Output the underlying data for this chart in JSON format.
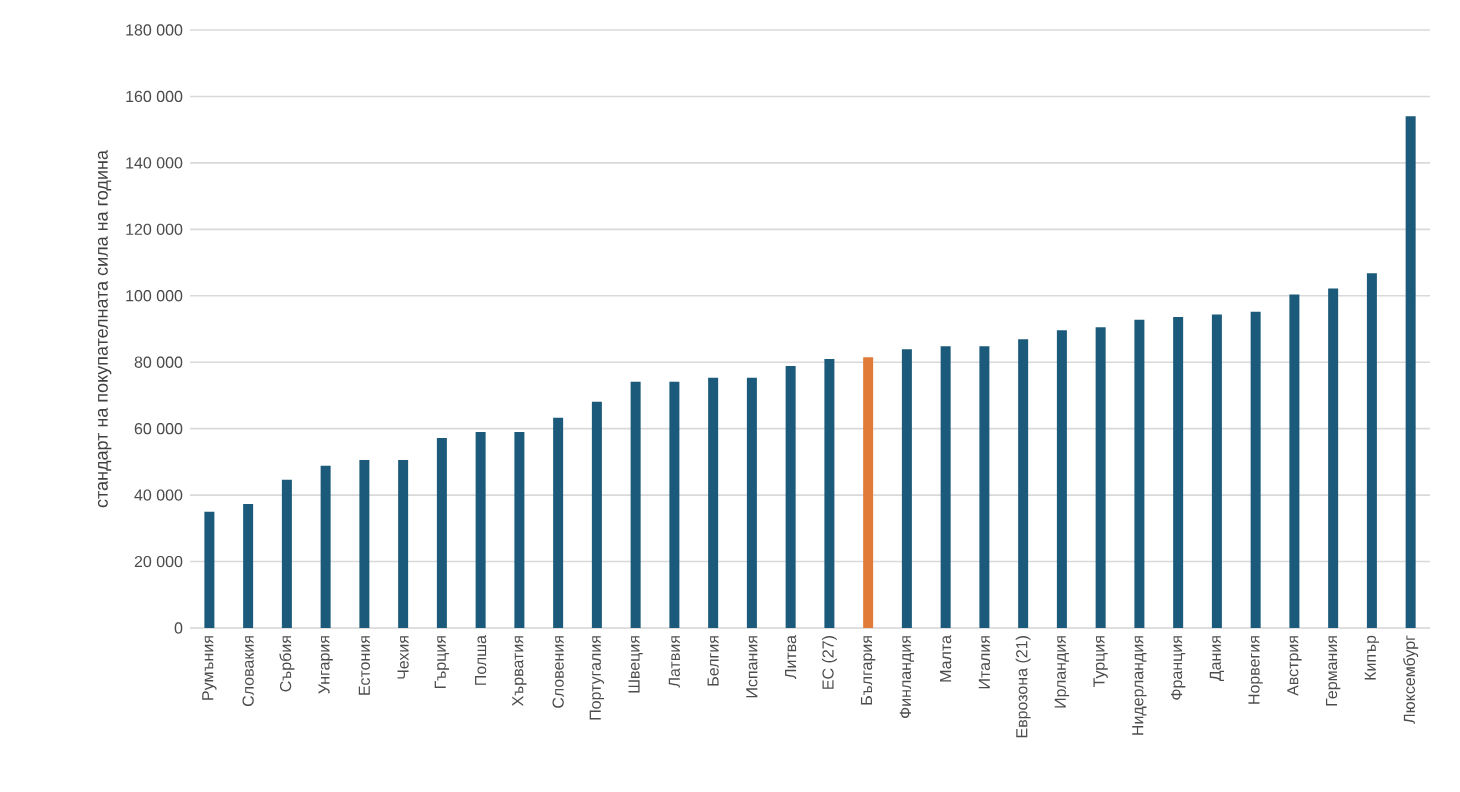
{
  "chart_data": {
    "type": "bar",
    "ylabel": "стандарт на покупателната сила на година",
    "categories": [
      "Румъния",
      "Словакия",
      "Сърбия",
      "Унгария",
      "Естония",
      "Чехия",
      "Гърция",
      "Полша",
      "Хърватия",
      "Словения",
      "Португалия",
      "Швеция",
      "Латвия",
      "Белгия",
      "Испания",
      "Литва",
      "ЕС (27)",
      "България",
      "Финландия",
      "Малта",
      "Италия",
      "Еврозона (21)",
      "Ирландия",
      "Турция",
      "Нидерландия",
      "Франция",
      "Дания",
      "Норвегия",
      "Австрия",
      "Германия",
      "Кипър",
      "Люксембург"
    ],
    "values": [
      35000,
      37300,
      44600,
      48800,
      50600,
      50600,
      57200,
      59000,
      59000,
      63300,
      68100,
      74100,
      74100,
      75300,
      75300,
      78900,
      81000,
      81500,
      83900,
      84800,
      84800,
      86900,
      89600,
      90500,
      92800,
      93600,
      94400,
      95200,
      100400,
      102200,
      106800,
      154000
    ],
    "colors": [
      "#1b5a7a",
      "#1b5a7a",
      "#1b5a7a",
      "#1b5a7a",
      "#1b5a7a",
      "#1b5a7a",
      "#1b5a7a",
      "#1b5a7a",
      "#1b5a7a",
      "#1b5a7a",
      "#1b5a7a",
      "#1b5a7a",
      "#1b5a7a",
      "#1b5a7a",
      "#1b5a7a",
      "#1b5a7a",
      "#1b5a7a",
      "#e07b39",
      "#1b5a7a",
      "#1b5a7a",
      "#1b5a7a",
      "#1b5a7a",
      "#1b5a7a",
      "#1b5a7a",
      "#1b5a7a",
      "#1b5a7a",
      "#1b5a7a",
      "#1b5a7a",
      "#1b5a7a",
      "#1b5a7a",
      "#1b5a7a",
      "#1b5a7a"
    ],
    "ylim": [
      0,
      180000
    ],
    "yticks": [
      {
        "value": 0,
        "label": "0"
      },
      {
        "value": 20000,
        "label": "20 000"
      },
      {
        "value": 40000,
        "label": "40 000"
      },
      {
        "value": 60000,
        "label": "60 000"
      },
      {
        "value": 80000,
        "label": "80 000"
      },
      {
        "value": 100000,
        "label": "100 000"
      },
      {
        "value": 120000,
        "label": "120 000"
      },
      {
        "value": 140000,
        "label": "140 000"
      },
      {
        "value": 160000,
        "label": "160 000"
      },
      {
        "value": 180000,
        "label": "180 000"
      }
    ],
    "grid": "y"
  }
}
